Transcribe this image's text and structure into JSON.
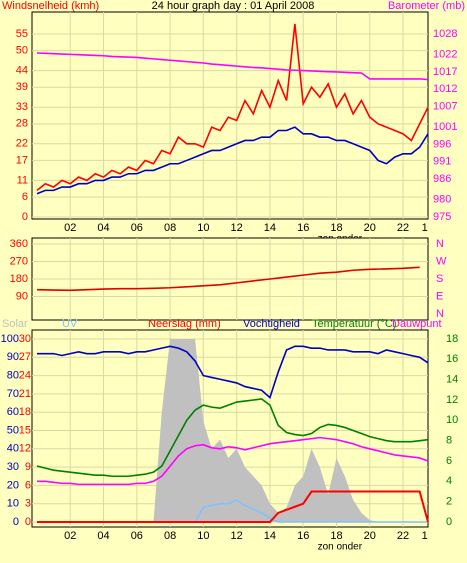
{
  "chart_data": [
    {
      "type": "line",
      "title": "24 hour graph day : 01 April 2008",
      "ylabel": "Windsnelheid (kmh)",
      "y2label": "Barometer (mb)",
      "x": [
        0,
        0.5,
        1,
        1.5,
        2,
        2.5,
        3,
        3.5,
        4,
        4.5,
        5,
        5.5,
        6,
        6.5,
        7,
        7.5,
        8,
        8.5,
        9,
        9.5,
        10,
        10.5,
        11,
        11.5,
        12,
        12.5,
        13,
        13.5,
        14,
        14.5,
        15,
        15.5,
        16,
        16.5,
        17,
        17.5,
        18,
        18.5,
        19,
        19.5,
        20,
        20.5,
        21,
        21.5,
        22,
        22.5,
        23,
        23.5
      ],
      "xlim": [
        -0.3,
        23.5
      ],
      "xticks": [
        {
          "value": 2,
          "label": "02"
        },
        {
          "value": 4,
          "label": "04"
        },
        {
          "value": 6,
          "label": "06"
        },
        {
          "value": 8,
          "label": "08"
        },
        {
          "value": 10,
          "label": "10"
        },
        {
          "value": 12,
          "label": "12"
        },
        {
          "value": 14,
          "label": "14"
        },
        {
          "value": 16,
          "label": "16"
        },
        {
          "value": 18,
          "label": "18"
        },
        {
          "value": 20,
          "label": "20"
        },
        {
          "value": 22,
          "label": "22"
        }
      ],
      "ylim": [
        0,
        55
      ],
      "yticks": [
        0,
        6,
        11,
        17,
        22,
        28,
        33,
        39,
        44,
        50,
        55
      ],
      "y2lim": [
        975,
        1028
      ],
      "y2ticks": [
        975,
        980,
        986,
        991,
        996,
        1001,
        1007,
        1012,
        1017,
        1022,
        1028
      ],
      "grid": true,
      "annotations": [
        {
          "text": "zon onder",
          "x": 18.2
        },
        {
          "text": "1",
          "x": 23.3
        }
      ],
      "series": [
        {
          "color": "#ff0000",
          "axis": "y",
          "values": [
            8,
            10,
            9,
            11,
            10,
            12,
            11,
            13,
            12,
            14,
            13,
            15,
            14,
            17,
            16,
            20,
            19,
            24,
            22,
            22,
            21,
            27,
            26,
            30,
            29,
            35,
            31,
            38,
            33,
            41,
            35,
            58,
            34,
            39,
            36,
            40,
            33,
            37,
            31,
            35,
            30,
            28,
            27,
            26,
            25,
            23,
            28,
            33
          ]
        },
        {
          "color": "#0000c0",
          "axis": "y",
          "values": [
            7,
            8,
            8,
            9,
            9,
            10,
            10,
            11,
            11,
            12,
            12,
            13,
            13,
            14,
            14,
            15,
            16,
            16,
            17,
            18,
            19,
            20,
            20,
            21,
            22,
            23,
            23,
            24,
            24,
            26,
            26,
            27,
            25,
            25,
            24,
            24,
            23,
            23,
            22,
            21,
            20,
            17,
            16,
            18,
            19,
            19,
            21,
            25
          ]
        },
        {
          "color": "#ff00ff",
          "axis": "y2",
          "values": [
            1022.5,
            1022.4,
            1022.3,
            1022.2,
            1022.1,
            1022,
            1021.9,
            1021.8,
            1021.7,
            1021.5,
            1021.4,
            1021.3,
            1021.2,
            1021,
            1020.8,
            1020.6,
            1020.4,
            1020.2,
            1020,
            1019.8,
            1019.6,
            1019.3,
            1019.1,
            1018.9,
            1018.7,
            1018.5,
            1018.3,
            1018.2,
            1018,
            1017.8,
            1017.6,
            1017.5,
            1017.4,
            1017.3,
            1017.2,
            1017.1,
            1017,
            1016.9,
            1016.8,
            1016.7,
            1015,
            1015,
            1015,
            1015,
            1015,
            1015,
            1015,
            1014.8
          ]
        }
      ]
    },
    {
      "type": "line",
      "x": [
        0,
        1,
        2,
        3,
        4,
        5,
        6,
        7,
        8,
        9,
        10,
        11,
        12,
        13,
        14,
        15,
        16,
        17,
        18,
        19,
        20,
        21,
        22,
        23
      ],
      "xlim": [
        -0.3,
        23.5
      ],
      "xticks": [
        2,
        4,
        6,
        8,
        10,
        12,
        14,
        16,
        18,
        20,
        22
      ],
      "ylim": [
        0,
        360
      ],
      "yticks": [
        90,
        180,
        270,
        360
      ],
      "y2lim": [
        0,
        360
      ],
      "y2ticks": [
        {
          "value": 0,
          "label": "N"
        },
        {
          "value": 90,
          "label": "E"
        },
        {
          "value": 180,
          "label": "S"
        },
        {
          "value": 270,
          "label": "W"
        },
        {
          "value": 360,
          "label": "N"
        }
      ],
      "grid": true,
      "series": [
        {
          "color": "#e00000",
          "axis": "y",
          "values": [
            125,
            123,
            122,
            125,
            128,
            130,
            130,
            132,
            135,
            140,
            145,
            150,
            160,
            170,
            180,
            190,
            200,
            210,
            215,
            225,
            230,
            232,
            235,
            240
          ]
        }
      ]
    },
    {
      "type": "line",
      "x": [
        0,
        0.5,
        1,
        1.5,
        2,
        2.5,
        3,
        3.5,
        4,
        4.5,
        5,
        5.5,
        6,
        6.5,
        7,
        7.5,
        8,
        8.5,
        9,
        9.5,
        10,
        10.5,
        11,
        11.5,
        12,
        12.5,
        13,
        13.5,
        14,
        14.5,
        15,
        15.5,
        16,
        16.5,
        17,
        17.5,
        18,
        18.5,
        19,
        19.5,
        20,
        20.5,
        21,
        21.5,
        22,
        22.5,
        23,
        23.5
      ],
      "xlim": [
        -0.3,
        23.5
      ],
      "xticks": [
        {
          "value": 2,
          "label": "02"
        },
        {
          "value": 4,
          "label": "04"
        },
        {
          "value": 6,
          "label": "06"
        },
        {
          "value": 8,
          "label": "08"
        },
        {
          "value": 10,
          "label": "10"
        },
        {
          "value": 12,
          "label": "12"
        },
        {
          "value": 14,
          "label": "14"
        },
        {
          "value": 16,
          "label": "16"
        },
        {
          "value": 18,
          "label": "18"
        },
        {
          "value": 20,
          "label": "20"
        },
        {
          "value": 22,
          "label": "22"
        }
      ],
      "ylim": [
        0,
        100
      ],
      "yticks": [
        0,
        10,
        20,
        30,
        40,
        50,
        60,
        70,
        80,
        90,
        100
      ],
      "y3lim": [
        0,
        30
      ],
      "y3ticks": [
        0,
        3,
        6,
        9,
        12,
        15,
        18,
        21,
        24,
        27,
        30
      ],
      "y2lim": [
        0,
        18
      ],
      "y2ticks": [
        0,
        2,
        4,
        6,
        8,
        10,
        12,
        14,
        16,
        18
      ],
      "grid": true,
      "annotations": [
        {
          "text": "zon onder",
          "x": 18.2
        },
        {
          "text": "1",
          "x": 23.3
        }
      ],
      "series": [
        {
          "name": "Solar",
          "color": "#c0c0c0",
          "axis": "y",
          "style": "area",
          "values": [
            0,
            0,
            0,
            0,
            0,
            0,
            0,
            0,
            0,
            0,
            0,
            0,
            0,
            0,
            0,
            60,
            100,
            100,
            100,
            100,
            55,
            40,
            45,
            35,
            40,
            30,
            25,
            20,
            10,
            5,
            8,
            20,
            25,
            40,
            30,
            15,
            35,
            25,
            12,
            5,
            1,
            0,
            0,
            0,
            0,
            0,
            0,
            0
          ]
        },
        {
          "name": "UV",
          "color": "#80c0ff",
          "axis": "y",
          "values": [
            0,
            0,
            0,
            0,
            0,
            0,
            0,
            0,
            0,
            0,
            0,
            0,
            0,
            0,
            0,
            0,
            0,
            0,
            0,
            0,
            8,
            9,
            10,
            10,
            12,
            9,
            7,
            5,
            2,
            0,
            0,
            0,
            0,
            0,
            0,
            0,
            0,
            0,
            0,
            0,
            0,
            0,
            0,
            0,
            0,
            0,
            0,
            0
          ]
        },
        {
          "name": "Neerslag (mm)",
          "color": "#ff0000",
          "axis": "y3",
          "values": [
            0,
            0,
            0,
            0,
            0,
            0,
            0,
            0,
            0,
            0,
            0,
            0,
            0,
            0,
            0,
            0,
            0,
            0,
            0,
            0,
            0,
            0,
            0,
            0,
            0,
            0,
            0,
            0,
            0,
            1.5,
            2,
            2.5,
            3,
            5,
            5,
            5,
            5,
            5,
            5,
            5,
            5,
            5,
            5,
            5,
            5,
            5,
            5,
            0
          ]
        },
        {
          "name": "Vochtigheid",
          "color": "#0000c0",
          "axis": "y",
          "values": [
            92,
            92,
            92,
            91,
            92,
            93,
            92,
            92,
            93,
            93,
            93,
            92,
            93,
            93,
            94,
            95,
            96,
            95,
            93,
            88,
            80,
            79,
            78,
            77,
            76,
            74,
            73,
            72,
            68,
            82,
            94,
            96,
            96,
            95,
            95,
            94,
            94,
            94,
            93,
            93,
            93,
            92,
            94,
            93,
            92,
            91,
            90,
            87
          ]
        },
        {
          "name": "Temperatuur (°C)",
          "color": "#008000",
          "axis": "y2",
          "values": [
            5.5,
            5.3,
            5.1,
            5,
            4.9,
            4.8,
            4.7,
            4.6,
            4.6,
            4.5,
            4.5,
            4.5,
            4.6,
            4.7,
            4.9,
            5.5,
            7,
            8.5,
            10,
            11,
            11.5,
            11.3,
            11.2,
            11.5,
            11.8,
            11.9,
            12,
            12.1,
            11.5,
            9.5,
            8.8,
            8.6,
            8.5,
            8.7,
            9.3,
            9.6,
            9.5,
            9.3,
            9,
            8.7,
            8.4,
            8.2,
            8,
            7.9,
            7.9,
            7.9,
            8,
            8.1
          ]
        },
        {
          "name": "Dauwpunt",
          "color": "#ff00ff",
          "axis": "y2",
          "values": [
            4,
            4,
            3.9,
            3.8,
            3.8,
            3.7,
            3.7,
            3.7,
            3.7,
            3.7,
            3.7,
            3.7,
            3.8,
            3.8,
            4,
            4.5,
            5.5,
            6.5,
            7.2,
            7.5,
            7.6,
            7.3,
            7.2,
            7.4,
            7.3,
            7.1,
            7.3,
            7.5,
            7.7,
            7.8,
            7.9,
            8,
            8.1,
            8.2,
            8.3,
            8.2,
            8.1,
            7.9,
            7.7,
            7.4,
            7.2,
            7,
            6.8,
            6.6,
            6.5,
            6.4,
            6.3,
            6
          ]
        }
      ]
    }
  ]
}
